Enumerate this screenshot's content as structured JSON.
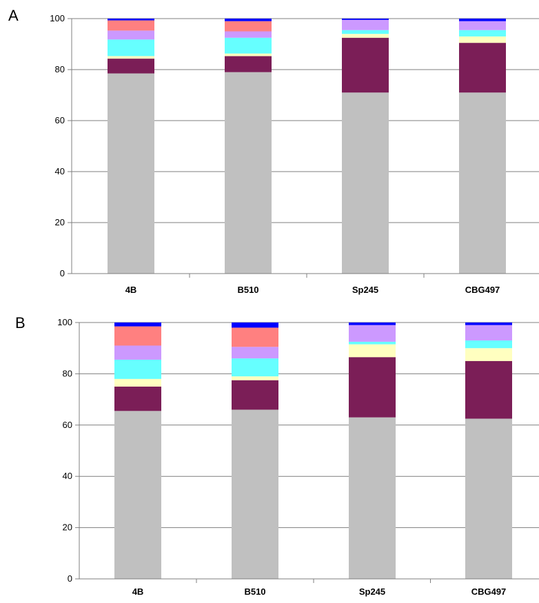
{
  "colors": {
    "Gray": "#C0C0C0",
    "Purple": "#7B1E57",
    "LightYellow": "#FFFFC0",
    "Cyan": "#66FFFF",
    "Lavender": "#CC99FF",
    "Salmon": "#FF8080",
    "Blue": "#0000FF"
  },
  "chart_data": [
    {
      "type": "bar",
      "stacked": true,
      "panel_label": "A",
      "categories": [
        "4B",
        "B510",
        "Sp245",
        "CBG497"
      ],
      "ylim": [
        0,
        100
      ],
      "yticks": [
        0,
        20,
        40,
        60,
        80,
        100
      ],
      "grid": true,
      "series": [
        {
          "color_key": "Gray",
          "values": [
            78.5,
            79.0,
            71.0,
            71.0
          ]
        },
        {
          "color_key": "Purple",
          "values": [
            5.8,
            6.3,
            21.5,
            19.5
          ]
        },
        {
          "color_key": "LightYellow",
          "values": [
            1.0,
            1.0,
            1.5,
            2.5
          ]
        },
        {
          "color_key": "Cyan",
          "values": [
            6.5,
            6.2,
            1.5,
            2.5
          ]
        },
        {
          "color_key": "Lavender",
          "values": [
            3.5,
            2.5,
            4.0,
            3.5
          ]
        },
        {
          "color_key": "Salmon",
          "values": [
            4.0,
            4.0,
            0.0,
            0.0
          ]
        },
        {
          "color_key": "Blue",
          "values": [
            0.7,
            1.0,
            0.5,
            1.0
          ]
        }
      ]
    },
    {
      "type": "bar",
      "stacked": true,
      "panel_label": "B",
      "categories": [
        "4B",
        "B510",
        "Sp245",
        "CBG497"
      ],
      "ylim": [
        0,
        100
      ],
      "yticks": [
        0,
        20,
        40,
        60,
        80,
        100
      ],
      "grid": true,
      "series": [
        {
          "color_key": "Gray",
          "values": [
            65.5,
            66.0,
            63.0,
            62.5
          ]
        },
        {
          "color_key": "Purple",
          "values": [
            9.5,
            11.5,
            23.5,
            22.5
          ]
        },
        {
          "color_key": "LightYellow",
          "values": [
            3.0,
            1.5,
            5.0,
            5.0
          ]
        },
        {
          "color_key": "Cyan",
          "values": [
            7.5,
            7.0,
            1.0,
            3.0
          ]
        },
        {
          "color_key": "Lavender",
          "values": [
            5.5,
            4.5,
            6.5,
            6.0
          ]
        },
        {
          "color_key": "Salmon",
          "values": [
            7.5,
            7.5,
            0.0,
            0.0
          ]
        },
        {
          "color_key": "Blue",
          "values": [
            1.5,
            2.0,
            1.0,
            1.0
          ]
        }
      ]
    }
  ]
}
